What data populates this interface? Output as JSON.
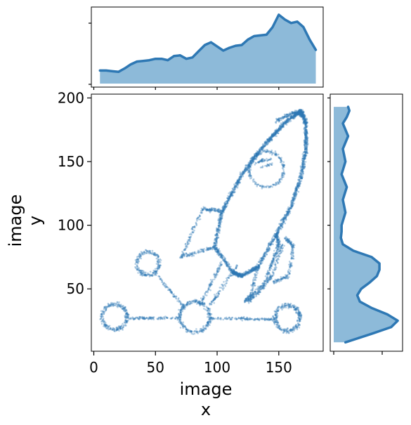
{
  "chart_data": {
    "type": "scatter",
    "xlabel_lines": [
      "image",
      "x"
    ],
    "ylabel_lines": [
      "image",
      "y"
    ],
    "xlim": [
      -2,
      186
    ],
    "ylim": [
      1,
      203
    ],
    "xticks": [
      0,
      50,
      100,
      150
    ],
    "yticks": [
      50,
      100,
      150,
      200
    ],
    "colors": {
      "points": "#2e78b4",
      "fill": "#8dbad9",
      "line": "#2e78b4"
    },
    "marginal_x_density": {
      "x": [
        5,
        10,
        15,
        20,
        25,
        30,
        35,
        40,
        45,
        50,
        55,
        60,
        65,
        70,
        75,
        80,
        85,
        90,
        95,
        100,
        105,
        110,
        115,
        120,
        125,
        130,
        135,
        140,
        145,
        150,
        155,
        160,
        165,
        170,
        175,
        180
      ],
      "density": [
        0.19,
        0.19,
        0.18,
        0.17,
        0.22,
        0.28,
        0.32,
        0.33,
        0.34,
        0.36,
        0.36,
        0.34,
        0.4,
        0.41,
        0.36,
        0.38,
        0.47,
        0.56,
        0.6,
        0.54,
        0.48,
        0.52,
        0.55,
        0.56,
        0.64,
        0.69,
        0.7,
        0.71,
        0.82,
        1.0,
        0.93,
        0.88,
        0.9,
        0.82,
        0.64,
        0.49
      ]
    },
    "marginal_y_density": {
      "y": [
        8,
        15,
        20,
        25,
        30,
        35,
        40,
        45,
        50,
        55,
        60,
        65,
        70,
        75,
        80,
        85,
        90,
        95,
        100,
        110,
        120,
        130,
        140,
        150,
        160,
        170,
        180,
        185,
        190,
        193
      ],
      "density": [
        0.18,
        0.6,
        0.88,
        0.98,
        0.82,
        0.58,
        0.4,
        0.36,
        0.42,
        0.55,
        0.66,
        0.7,
        0.7,
        0.58,
        0.3,
        0.14,
        0.11,
        0.12,
        0.12,
        0.18,
        0.14,
        0.2,
        0.12,
        0.18,
        0.14,
        0.22,
        0.14,
        0.2,
        0.24,
        0.22
      ]
    }
  }
}
